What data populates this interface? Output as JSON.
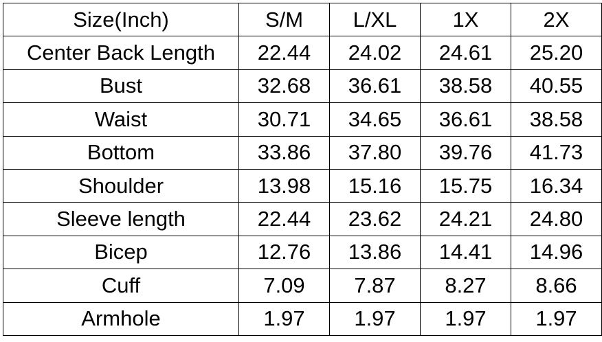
{
  "table": {
    "headers": [
      "Size(Inch)",
      "S/M",
      "L/XL",
      "1X",
      "2X"
    ],
    "rows": [
      [
        "Center Back Length",
        "22.44",
        "24.02",
        "24.61",
        "25.20"
      ],
      [
        "Bust",
        "32.68",
        "36.61",
        "38.58",
        "40.55"
      ],
      [
        "Waist",
        "30.71",
        "34.65",
        "36.61",
        "38.58"
      ],
      [
        "Bottom",
        "33.86",
        "37.80",
        "39.76",
        "41.73"
      ],
      [
        "Shoulder",
        "13.98",
        "15.16",
        "15.75",
        "16.34"
      ],
      [
        "Sleeve length",
        "22.44",
        "23.62",
        "24.21",
        "24.80"
      ],
      [
        "Bicep",
        "12.76",
        "13.86",
        "14.41",
        "14.96"
      ],
      [
        "Cuff",
        "7.09",
        "7.87",
        "8.27",
        "8.66"
      ],
      [
        "Armhole",
        "1.97",
        "1.97",
        "1.97",
        "1.97"
      ]
    ]
  }
}
